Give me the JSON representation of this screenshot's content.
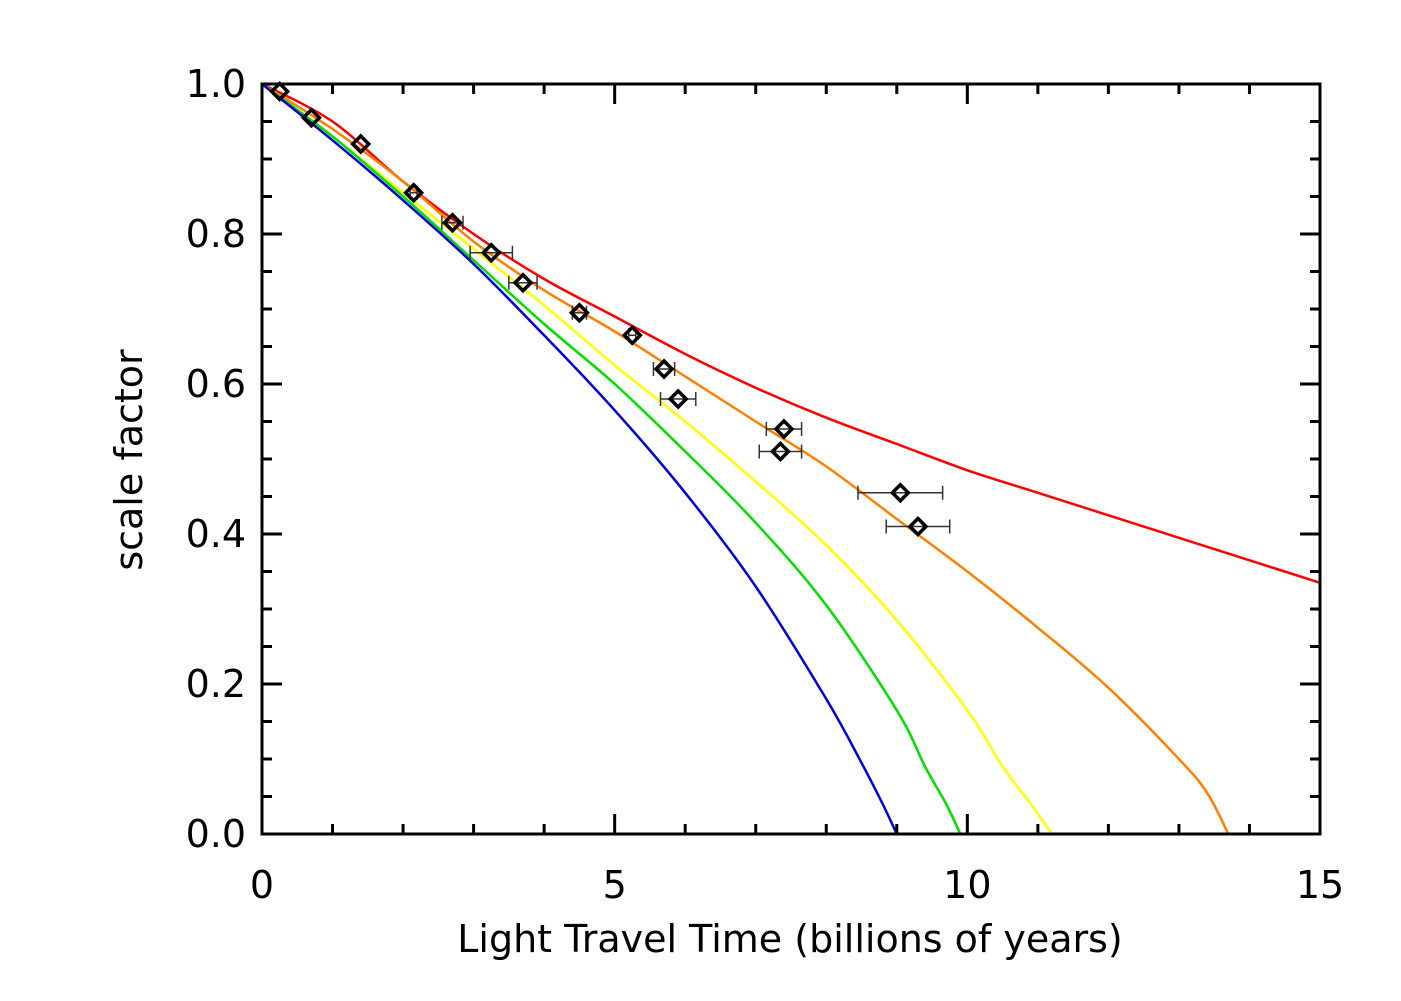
{
  "chart_data": {
    "type": "line",
    "title": "",
    "xlabel": "Light Travel Time (billions of years)",
    "ylabel": "scale factor",
    "xlim": [
      0,
      15
    ],
    "ylim": [
      0,
      1.0
    ],
    "x_ticks": [
      0,
      5,
      10,
      15
    ],
    "x_tick_labels": [
      "0",
      "5",
      "10",
      "15"
    ],
    "x_minor_step": 1,
    "y_ticks": [
      0.0,
      0.2,
      0.4,
      0.6,
      0.8,
      1.0
    ],
    "y_tick_labels": [
      "0.0",
      "0.2",
      "0.4",
      "0.6",
      "0.8",
      "1.0"
    ],
    "y_minor_step": 0.05,
    "grid": false,
    "legend": "none",
    "series": [
      {
        "color": "#ff0000",
        "x": [
          0,
          1,
          2,
          3,
          4,
          5,
          6,
          7,
          8,
          9,
          10,
          11,
          12,
          13,
          14,
          15
        ],
        "y": [
          1.0,
          0.95,
          0.87,
          0.8,
          0.74,
          0.69,
          0.64,
          0.595,
          0.555,
          0.52,
          0.485,
          0.455,
          0.425,
          0.395,
          0.365,
          0.335
        ]
      },
      {
        "color": "#ff8000",
        "x": [
          0,
          1,
          2,
          3,
          4,
          5,
          6,
          7,
          8,
          9,
          10,
          11,
          12,
          13,
          13.4,
          13.7
        ],
        "y": [
          1.0,
          0.94,
          0.87,
          0.79,
          0.725,
          0.67,
          0.61,
          0.55,
          0.49,
          0.42,
          0.35,
          0.275,
          0.195,
          0.1,
          0.055,
          0.0
        ]
      },
      {
        "color": "#ffff00",
        "x": [
          0,
          1,
          2,
          3,
          4,
          5,
          6,
          7,
          8,
          9,
          10,
          10.5,
          10.9,
          11.2
        ],
        "y": [
          1.0,
          0.93,
          0.855,
          0.78,
          0.705,
          0.625,
          0.55,
          0.47,
          0.385,
          0.285,
          0.165,
          0.09,
          0.04,
          0.0
        ]
      },
      {
        "color": "#00e000",
        "x": [
          0,
          1,
          2,
          3,
          4,
          5,
          6,
          7,
          8,
          9,
          9.4,
          9.7,
          9.9
        ],
        "y": [
          1.0,
          0.93,
          0.85,
          0.765,
          0.68,
          0.6,
          0.51,
          0.415,
          0.305,
          0.165,
          0.09,
          0.04,
          0.0
        ]
      },
      {
        "color": "#0000dd",
        "x": [
          0,
          1,
          2,
          3,
          4,
          5,
          6,
          7,
          8,
          8.5,
          8.8,
          9.0
        ],
        "y": [
          1.0,
          0.925,
          0.845,
          0.76,
          0.665,
          0.565,
          0.455,
          0.33,
          0.18,
          0.095,
          0.04,
          0.0
        ]
      }
    ],
    "data_points": [
      {
        "x": 0.25,
        "y": 0.99,
        "xerr": 0.0
      },
      {
        "x": 0.7,
        "y": 0.955,
        "xerr": 0.0
      },
      {
        "x": 1.4,
        "y": 0.92,
        "xerr": 0.0
      },
      {
        "x": 2.15,
        "y": 0.855,
        "xerr": 0.05
      },
      {
        "x": 2.7,
        "y": 0.815,
        "xerr": 0.15
      },
      {
        "x": 3.25,
        "y": 0.775,
        "xerr": 0.3
      },
      {
        "x": 3.7,
        "y": 0.735,
        "xerr": 0.2
      },
      {
        "x": 4.5,
        "y": 0.695,
        "xerr": 0.1
      },
      {
        "x": 5.25,
        "y": 0.665,
        "xerr": 0.05
      },
      {
        "x": 5.7,
        "y": 0.62,
        "xerr": 0.15
      },
      {
        "x": 5.9,
        "y": 0.58,
        "xerr": 0.25
      },
      {
        "x": 7.4,
        "y": 0.54,
        "xerr": 0.25
      },
      {
        "x": 7.35,
        "y": 0.51,
        "xerr": 0.3
      },
      {
        "x": 9.05,
        "y": 0.455,
        "xerr": 0.6
      },
      {
        "x": 9.3,
        "y": 0.41,
        "xerr": 0.45
      }
    ]
  }
}
